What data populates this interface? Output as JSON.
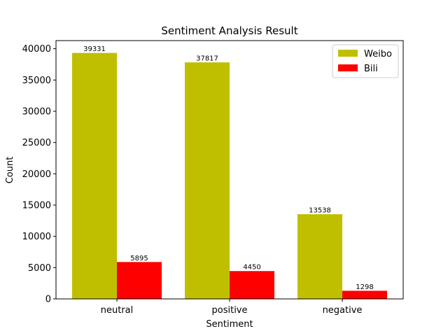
{
  "chart_data": {
    "type": "bar",
    "title": "Sentiment Analysis Result",
    "xlabel": "Sentiment",
    "ylabel": "Count",
    "categories": [
      "neutral",
      "positive",
      "negative"
    ],
    "series": [
      {
        "name": "Weibo",
        "color": "#bfbf00",
        "values": [
          39331,
          37817,
          13538
        ]
      },
      {
        "name": "Bili",
        "color": "#ff0000",
        "values": [
          5895,
          4450,
          1298
        ]
      }
    ],
    "ylim": [
      0,
      41300
    ],
    "yticks": [
      0,
      5000,
      10000,
      15000,
      20000,
      25000,
      30000,
      35000,
      40000
    ],
    "grid": false,
    "legend_position": "top-right"
  }
}
